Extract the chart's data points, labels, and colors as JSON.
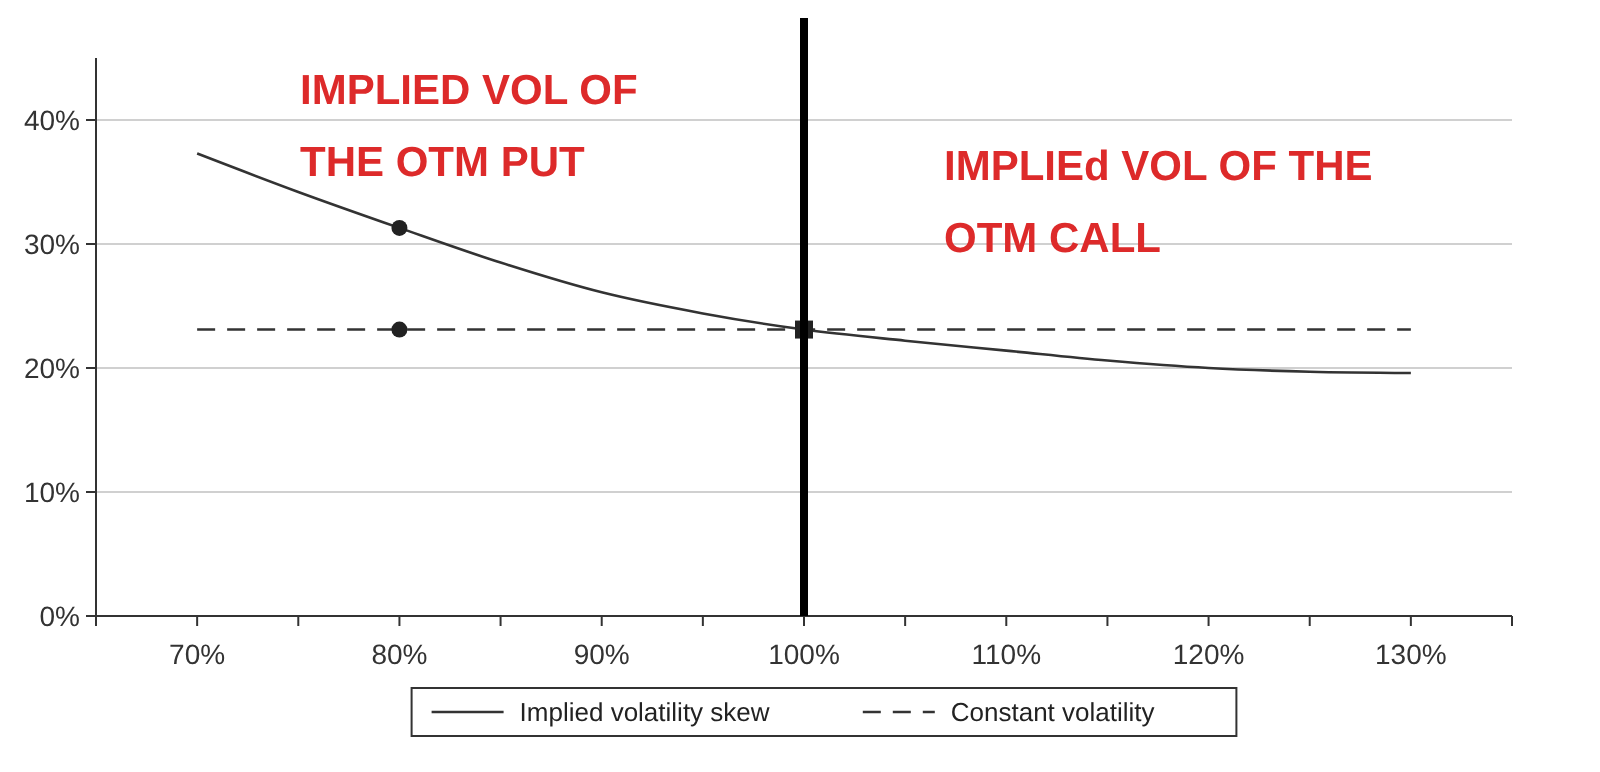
{
  "chart_data": {
    "type": "line",
    "xlim": [
      65,
      135
    ],
    "ylim": [
      0,
      45
    ],
    "xticks": [
      {
        "value": 65,
        "label": null
      },
      {
        "value": 70,
        "label": "70%"
      },
      {
        "value": 75,
        "label": null
      },
      {
        "value": 80,
        "label": "80%"
      },
      {
        "value": 85,
        "label": null
      },
      {
        "value": 90,
        "label": "90%"
      },
      {
        "value": 95,
        "label": null
      },
      {
        "value": 100,
        "label": "100%"
      },
      {
        "value": 105,
        "label": null
      },
      {
        "value": 110,
        "label": "110%"
      },
      {
        "value": 115,
        "label": null
      },
      {
        "value": 120,
        "label": "120%"
      },
      {
        "value": 125,
        "label": null
      },
      {
        "value": 130,
        "label": "130%"
      },
      {
        "value": 135,
        "label": null
      }
    ],
    "yticks": [
      {
        "value": 0,
        "label": "0%"
      },
      {
        "value": 10,
        "label": "10%"
      },
      {
        "value": 20,
        "label": "20%"
      },
      {
        "value": 30,
        "label": "30%"
      },
      {
        "value": 40,
        "label": "40%"
      }
    ],
    "grid": "y",
    "legend": "bottom",
    "series": [
      {
        "name": "Implied volatility skew",
        "color": "#333333",
        "line_style": "solid",
        "marker": "none",
        "x": [
          70,
          75,
          80,
          85,
          90,
          95,
          100,
          105,
          110,
          115,
          120,
          125,
          130
        ],
        "values": [
          37.3,
          34.2,
          31.3,
          28.5,
          26.1,
          24.4,
          23.1,
          22.2,
          21.4,
          20.6,
          20.0,
          19.7,
          19.6
        ]
      },
      {
        "name": "Constant volatility",
        "color": "#333333",
        "line_style": "dashed",
        "marker": "none",
        "x": [
          70,
          130
        ],
        "values": [
          23.1,
          23.1
        ]
      },
      {
        "type": "scatter",
        "color": "#222222",
        "marker": "circle",
        "x": [
          80,
          80
        ],
        "values": [
          31.3,
          23.1
        ]
      },
      {
        "type": "scatter",
        "color": "#222222",
        "marker": "square",
        "x": [
          100
        ],
        "values": [
          23.1
        ]
      }
    ],
    "ref_lines": [
      {
        "axis": "x",
        "value": 100,
        "color": "#000000"
      }
    ],
    "annotations": [
      "IMPLIED VOL OF THE OTM PUT",
      "IMPLIEd VOL OF THE OTM CALL"
    ]
  }
}
